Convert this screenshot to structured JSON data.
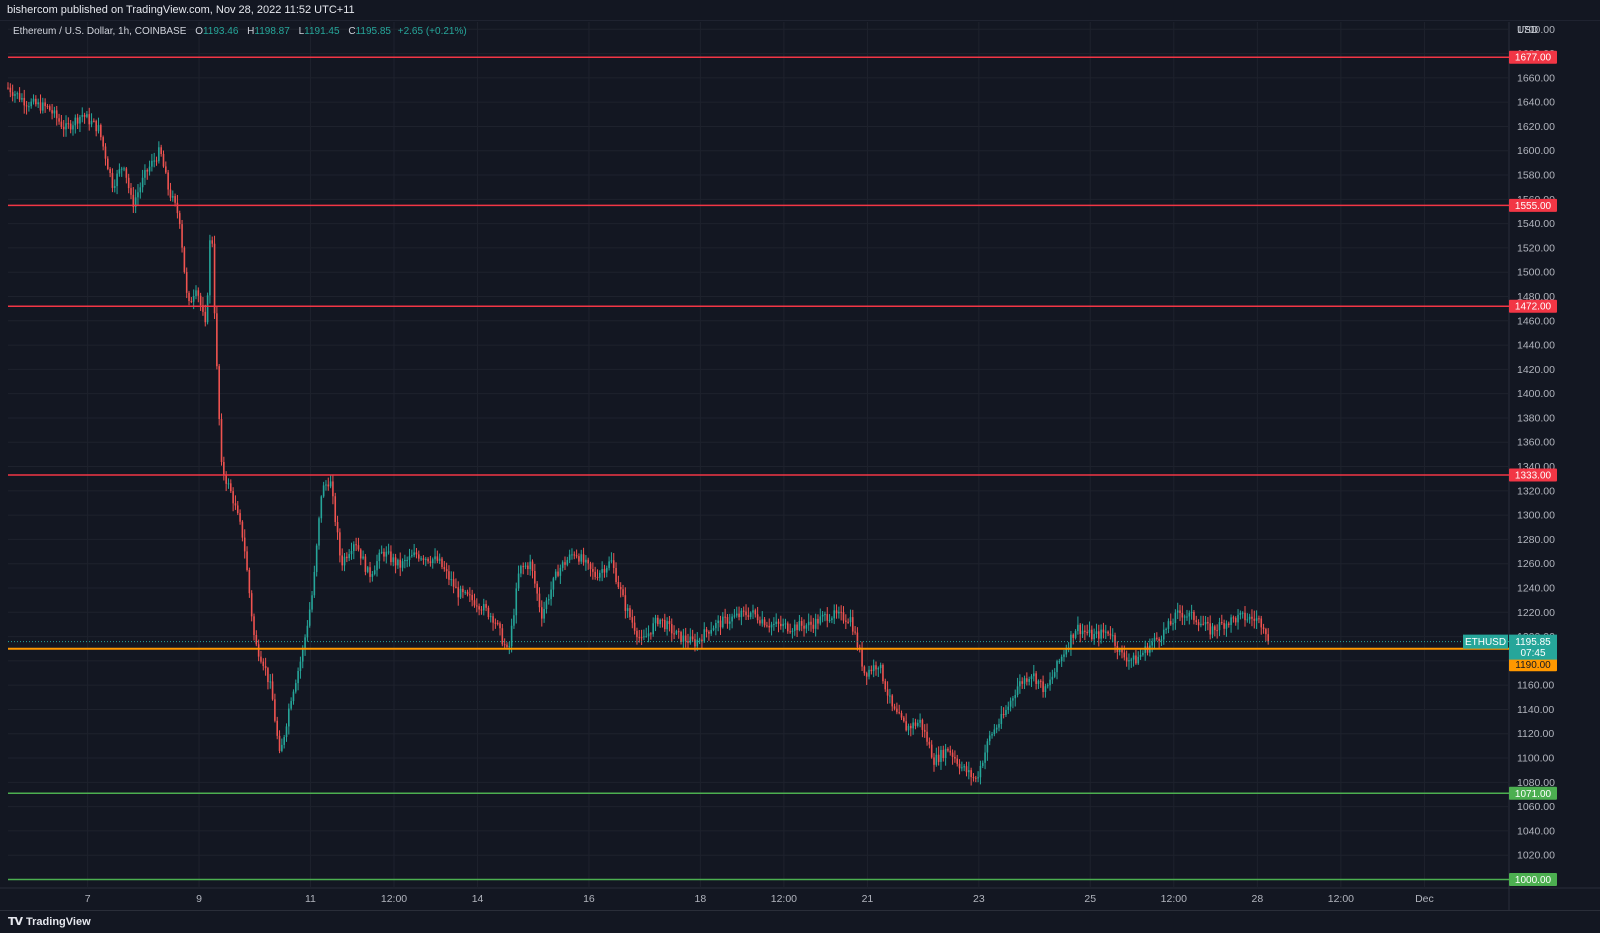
{
  "header": {
    "published": "bishercom published on TradingView.com, Nov 28, 2022 11:52 UTC+11"
  },
  "legend": {
    "symbol": "Ethereum / U.S. Dollar, 1h, COINBASE",
    "o_label": "O",
    "o_value": "1193.46",
    "h_label": "H",
    "h_value": "1198.87",
    "l_label": "L",
    "l_value": "1191.45",
    "c_label": "C",
    "c_value": "1195.85",
    "change": "+2.65 (+0.21%)"
  },
  "footer": {
    "brand": "TradingView"
  },
  "colors": {
    "background": "#131722",
    "up": "#26a69a",
    "down": "#ef5350",
    "resistance": "#f23645",
    "support": "#4caf50",
    "current": "#ff9800",
    "grid": "#1e222d",
    "text": "#b2b5be"
  },
  "chart_data": {
    "type": "candlestick",
    "symbol": "ETHUSD",
    "currency": "USD",
    "ylim": [
      993,
      1706
    ],
    "y_ticks": [
      1000,
      1020,
      1040,
      1060,
      1080,
      1100,
      1120,
      1140,
      1160,
      1180,
      1200,
      1220,
      1240,
      1260,
      1280,
      1300,
      1320,
      1340,
      1360,
      1380,
      1400,
      1420,
      1440,
      1460,
      1480,
      1500,
      1520,
      1540,
      1560,
      1580,
      1600,
      1620,
      1640,
      1660,
      1680,
      1700
    ],
    "x_ticks": [
      {
        "label": "7",
        "t": 1.5
      },
      {
        "label": "9",
        "t": 3.5
      },
      {
        "label": "11",
        "t": 5.5
      },
      {
        "label": "12:00",
        "t": 7.0
      },
      {
        "label": "14",
        "t": 8.5
      },
      {
        "label": "16",
        "t": 10.5
      },
      {
        "label": "18",
        "t": 12.5
      },
      {
        "label": "12:00",
        "t": 14.0
      },
      {
        "label": "21",
        "t": 15.5
      },
      {
        "label": "23",
        "t": 17.5
      },
      {
        "label": "25",
        "t": 19.5
      },
      {
        "label": "12:00",
        "t": 21.0
      },
      {
        "label": "28",
        "t": 22.5
      },
      {
        "label": "12:00",
        "t": 24.0
      },
      {
        "label": "Dec",
        "t": 25.5
      }
    ],
    "x_range": [
      0.07,
      27.0
    ],
    "levels": [
      {
        "value": 1677,
        "label": "1677.00",
        "kind": "resistance"
      },
      {
        "value": 1555,
        "label": "1555.00",
        "kind": "resistance"
      },
      {
        "value": 1472,
        "label": "1472.00",
        "kind": "resistance"
      },
      {
        "value": 1333,
        "label": "1333.00",
        "kind": "resistance"
      },
      {
        "value": 1190,
        "label": "1190.00",
        "kind": "current"
      },
      {
        "value": 1071,
        "label": "1071.00",
        "kind": "support"
      },
      {
        "value": 1000,
        "label": "1000.00",
        "kind": "support"
      }
    ],
    "last_price": {
      "symbol": "ETHUSD",
      "value": 1195.85,
      "label": "1195.85",
      "countdown": "07:45"
    },
    "series": [
      {
        "kind": "ohlc-anchors",
        "points": [
          {
            "t": 0.07,
            "p": 1652
          },
          {
            "t": 0.4,
            "p": 1640
          },
          {
            "t": 0.8,
            "p": 1635
          },
          {
            "t": 1.1,
            "p": 1618
          },
          {
            "t": 1.4,
            "p": 1630
          },
          {
            "t": 1.7,
            "p": 1618
          },
          {
            "t": 1.95,
            "p": 1572
          },
          {
            "t": 2.15,
            "p": 1590
          },
          {
            "t": 2.3,
            "p": 1555
          },
          {
            "t": 2.55,
            "p": 1582
          },
          {
            "t": 2.8,
            "p": 1600
          },
          {
            "t": 2.95,
            "p": 1568
          },
          {
            "t": 3.15,
            "p": 1545
          },
          {
            "t": 3.3,
            "p": 1470
          },
          {
            "t": 3.45,
            "p": 1490
          },
          {
            "t": 3.62,
            "p": 1453
          },
          {
            "t": 3.72,
            "p": 1548
          },
          {
            "t": 3.8,
            "p": 1440
          },
          {
            "t": 3.9,
            "p": 1340
          },
          {
            "t": 4.1,
            "p": 1315
          },
          {
            "t": 4.3,
            "p": 1280
          },
          {
            "t": 4.5,
            "p": 1195
          },
          {
            "t": 4.65,
            "p": 1180
          },
          {
            "t": 4.8,
            "p": 1155
          },
          {
            "t": 4.95,
            "p": 1100
          },
          {
            "t": 5.15,
            "p": 1150
          },
          {
            "t": 5.35,
            "p": 1185
          },
          {
            "t": 5.55,
            "p": 1240
          },
          {
            "t": 5.7,
            "p": 1320
          },
          {
            "t": 5.85,
            "p": 1330
          },
          {
            "t": 6.05,
            "p": 1260
          },
          {
            "t": 6.3,
            "p": 1280
          },
          {
            "t": 6.55,
            "p": 1250
          },
          {
            "t": 6.8,
            "p": 1270
          },
          {
            "t": 7.1,
            "p": 1258
          },
          {
            "t": 7.4,
            "p": 1268
          },
          {
            "t": 7.8,
            "p": 1262
          },
          {
            "t": 8.15,
            "p": 1236
          },
          {
            "t": 8.5,
            "p": 1228
          },
          {
            "t": 8.8,
            "p": 1215
          },
          {
            "t": 9.05,
            "p": 1185
          },
          {
            "t": 9.25,
            "p": 1255
          },
          {
            "t": 9.45,
            "p": 1260
          },
          {
            "t": 9.65,
            "p": 1218
          },
          {
            "t": 9.95,
            "p": 1255
          },
          {
            "t": 10.25,
            "p": 1270
          },
          {
            "t": 10.6,
            "p": 1250
          },
          {
            "t": 10.9,
            "p": 1262
          },
          {
            "t": 11.15,
            "p": 1225
          },
          {
            "t": 11.45,
            "p": 1195
          },
          {
            "t": 11.75,
            "p": 1215
          },
          {
            "t": 12.1,
            "p": 1200
          },
          {
            "t": 12.4,
            "p": 1195
          },
          {
            "t": 12.7,
            "p": 1208
          },
          {
            "t": 13.05,
            "p": 1215
          },
          {
            "t": 13.4,
            "p": 1220
          },
          {
            "t": 13.75,
            "p": 1210
          },
          {
            "t": 14.1,
            "p": 1208
          },
          {
            "t": 14.5,
            "p": 1210
          },
          {
            "t": 14.8,
            "p": 1218
          },
          {
            "t": 15.2,
            "p": 1215
          },
          {
            "t": 15.45,
            "p": 1170
          },
          {
            "t": 15.7,
            "p": 1178
          },
          {
            "t": 15.95,
            "p": 1140
          },
          {
            "t": 16.2,
            "p": 1125
          },
          {
            "t": 16.45,
            "p": 1130
          },
          {
            "t": 16.7,
            "p": 1098
          },
          {
            "t": 16.95,
            "p": 1108
          },
          {
            "t": 17.2,
            "p": 1092
          },
          {
            "t": 17.45,
            "p": 1082
          },
          {
            "t": 17.7,
            "p": 1118
          },
          {
            "t": 17.95,
            "p": 1135
          },
          {
            "t": 18.2,
            "p": 1160
          },
          {
            "t": 18.45,
            "p": 1170
          },
          {
            "t": 18.7,
            "p": 1155
          },
          {
            "t": 18.95,
            "p": 1180
          },
          {
            "t": 19.25,
            "p": 1208
          },
          {
            "t": 19.55,
            "p": 1200
          },
          {
            "t": 19.85,
            "p": 1205
          },
          {
            "t": 20.05,
            "p": 1185
          },
          {
            "t": 20.3,
            "p": 1180
          },
          {
            "t": 20.55,
            "p": 1192
          },
          {
            "t": 20.85,
            "p": 1205
          },
          {
            "t": 21.1,
            "p": 1220
          },
          {
            "t": 21.4,
            "p": 1215
          },
          {
            "t": 21.65,
            "p": 1205
          },
          {
            "t": 21.95,
            "p": 1212
          },
          {
            "t": 22.2,
            "p": 1216
          },
          {
            "t": 22.5,
            "p": 1214
          },
          {
            "t": 22.62,
            "p": 1210
          },
          {
            "t": 22.72,
            "p": 1196
          }
        ]
      }
    ],
    "grid": true,
    "legend_position": "top-left"
  }
}
